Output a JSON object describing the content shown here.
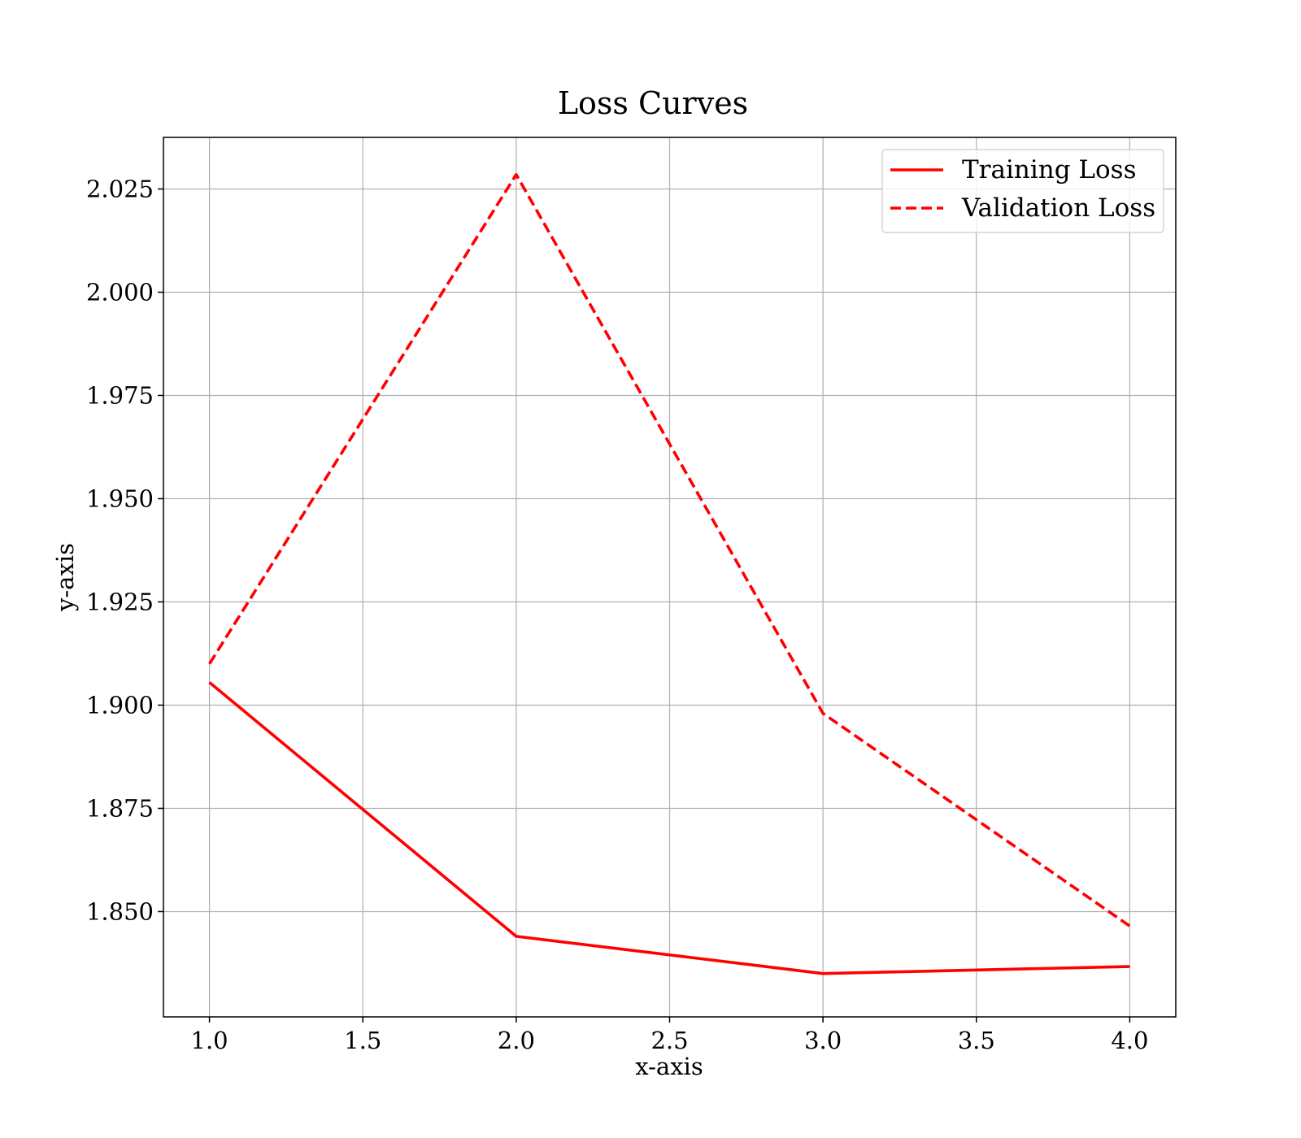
{
  "chart_data": {
    "type": "line",
    "title": "Loss Curves",
    "xlabel": "x-axis",
    "ylabel": "y-axis",
    "x": [
      1.0,
      2.0,
      3.0,
      4.0
    ],
    "series": [
      {
        "name": "Training Loss",
        "values": [
          1.9055,
          1.844,
          1.835,
          1.8367
        ],
        "color": "#ff0000",
        "style": "solid"
      },
      {
        "name": "Validation Loss",
        "values": [
          1.91,
          2.0285,
          1.898,
          1.8465
        ],
        "color": "#ff0000",
        "style": "dashed"
      }
    ],
    "xlim": [
      0.85,
      4.15
    ],
    "ylim": [
      1.8245,
      2.0375
    ],
    "xticks": [
      "1.0",
      "1.5",
      "2.0",
      "2.5",
      "3.0",
      "3.5",
      "4.0"
    ],
    "yticks": [
      "1.850",
      "1.875",
      "1.900",
      "1.925",
      "1.950",
      "1.975",
      "2.000",
      "2.025"
    ],
    "grid": true,
    "legend_position": "top-right"
  }
}
